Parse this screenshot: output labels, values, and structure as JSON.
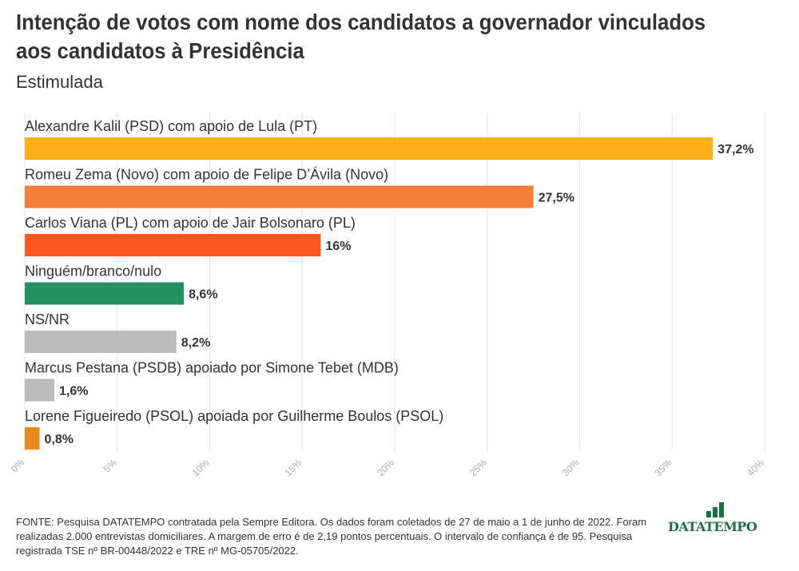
{
  "header": {
    "title": "Intenção de votos com nome dos candidatos a governador vinculados aos candidatos à Presidência",
    "subtitle": "Estimulada"
  },
  "chart_data": {
    "type": "bar",
    "orientation": "horizontal",
    "categories": [
      "Alexandre Kalil (PSD) com apoio de Lula (PT)",
      "Romeu Zema (Novo) com apoio de Felipe D’Ávila (Novo)",
      "Carlos Viana (PL) com apoio de Jair Bolsonaro (PL)",
      "Ninguém/branco/nulo",
      "NS/NR",
      "Marcus Pestana (PSDB) apoiado por Simone Tebet (MDB)",
      "Lorene Figueiredo (PSOL) apoiada por Guilherme Boulos (PSOL)"
    ],
    "values": [
      37.2,
      27.5,
      16,
      8.6,
      8.2,
      1.6,
      0.8
    ],
    "value_labels": [
      "37,2%",
      "27,5%",
      "16%",
      "8,6%",
      "8,2%",
      "1,6%",
      "0,8%"
    ],
    "colors": [
      "#fdb01b",
      "#f47e37",
      "#ff5720",
      "#249160",
      "#bcbcbc",
      "#bcbcbc",
      "#e88b1f"
    ],
    "xlim": [
      0,
      40
    ],
    "xticks": [
      0,
      5,
      10,
      15,
      20,
      25,
      30,
      35,
      40
    ],
    "xtick_labels": [
      "0%",
      "5%",
      "10%",
      "15%",
      "20%",
      "25%",
      "30%",
      "35%",
      "40%"
    ],
    "grid": true
  },
  "footer": {
    "source": "FONTE: Pesquisa DATATEMPO contratada pela Sempre Editora. Os dados foram coletados de 27 de maio a 1 de junho de 2022. Foram realizadas 2.000 entrevistas domiciliares. A margem de erro é de 2,19 pontos percentuais. O intervalo de confiança é de 95. Pesquisa registrada TSE nº BR-00448/2022 e TRE nº MG-05705/2022.",
    "logo_text": "DATATEMPO",
    "logo_color": "#1f6e43"
  }
}
